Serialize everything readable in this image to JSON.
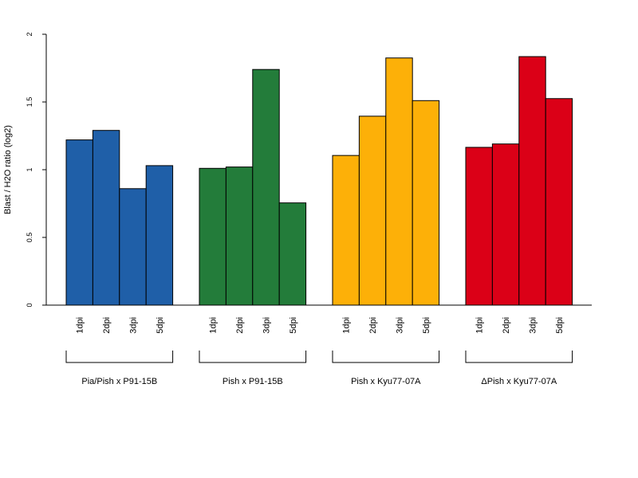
{
  "chart_data": {
    "type": "bar",
    "ylabel": "Blast / H2O ratio (log2)",
    "ylim": [
      0,
      2
    ],
    "yticks": [
      0,
      0.5,
      1,
      1.5,
      2
    ],
    "ytick_labels": [
      "0",
      "0.5",
      "1",
      "1.5",
      "2"
    ],
    "categories": [
      "1dpi",
      "2dpi",
      "3dpi",
      "5dpi"
    ],
    "grid": false,
    "legend": "none",
    "groups": [
      {
        "name": "Pia/Pish x P91-15B",
        "color": "#1f5fa8",
        "values": [
          1.22,
          1.29,
          0.86,
          1.03
        ]
      },
      {
        "name": "Pish x P91-15B",
        "color": "#237c3a",
        "values": [
          1.01,
          1.02,
          1.74,
          0.755
        ]
      },
      {
        "name": "Pish x Kyu77-07A",
        "color": "#fdb008",
        "values": [
          1.105,
          1.395,
          1.825,
          1.51
        ]
      },
      {
        "name": "ΔPish x Kyu77-07A",
        "color": "#db0017",
        "values": [
          1.165,
          1.19,
          1.835,
          1.525
        ]
      }
    ]
  }
}
